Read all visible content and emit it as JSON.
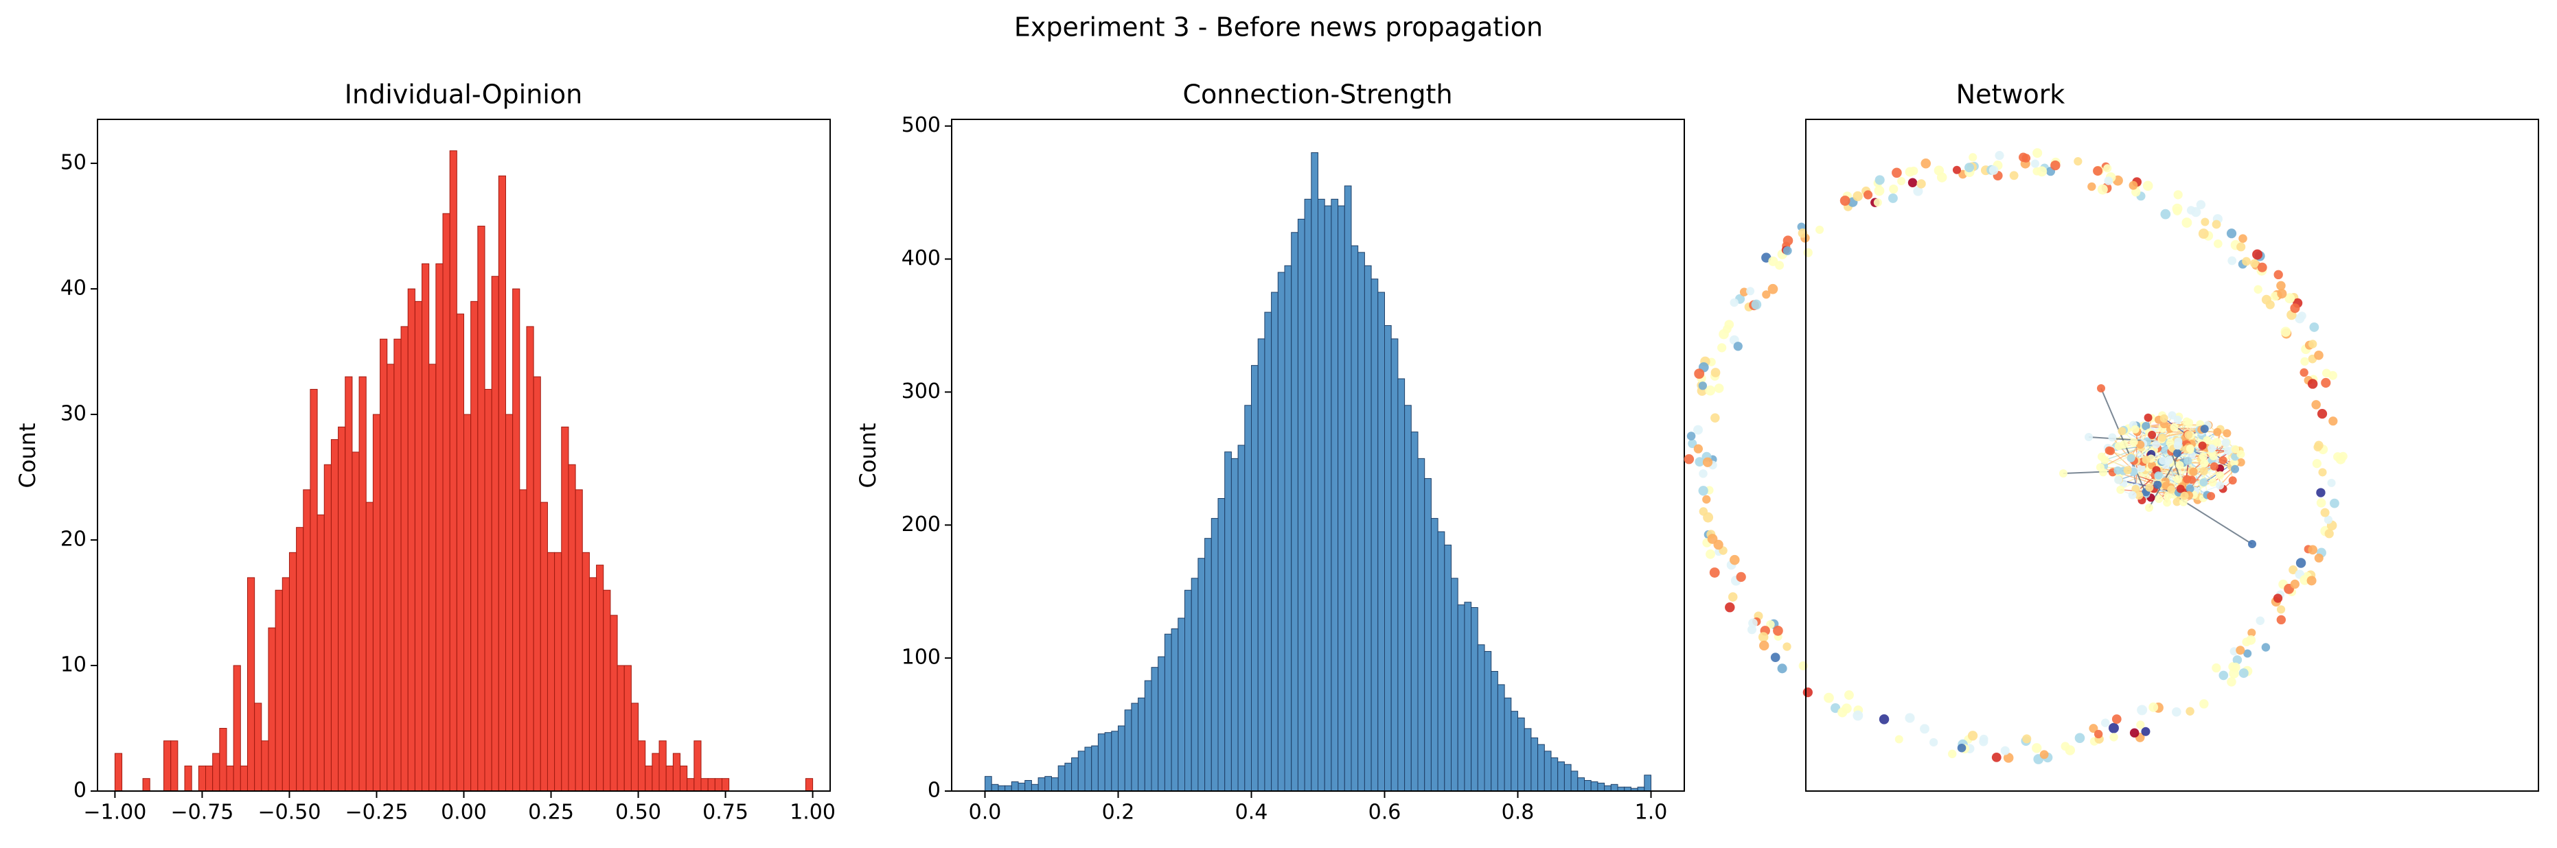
{
  "figure": {
    "suptitle": "Experiment 3 - Before news propagation"
  },
  "colors": {
    "opinion_fill": "#ef3b2c",
    "opinion_edge": "#a01a10",
    "strength_fill": "#4a8cc2",
    "strength_edge": "#1f3f66",
    "axis": "#000000"
  },
  "chart_data": [
    {
      "type": "bar",
      "title": "Individual-Opinion",
      "xlabel": "",
      "ylabel": "Count",
      "xlim": [
        -1.05,
        1.05
      ],
      "ylim": [
        0,
        53.5
      ],
      "xticks": [
        -1.0,
        -0.75,
        -0.5,
        -0.25,
        0.0,
        0.25,
        0.5,
        0.75,
        1.0
      ],
      "xtick_labels": [
        "−1.00",
        "−0.75",
        "−0.50",
        "−0.25",
        "0.00",
        "0.25",
        "0.50",
        "0.75",
        "1.00"
      ],
      "yticks": [
        0,
        10,
        20,
        30,
        40,
        50
      ],
      "ytick_labels": [
        "0",
        "10",
        "20",
        "30",
        "40",
        "50"
      ],
      "bin_start": -1.0,
      "bin_width": 0.02,
      "values": [
        3,
        0,
        0,
        0,
        1,
        0,
        0,
        4,
        4,
        0,
        2,
        0,
        2,
        2,
        3,
        5,
        2,
        10,
        2,
        17,
        7,
        4,
        13,
        16,
        17,
        19,
        21,
        24,
        32,
        22,
        26,
        28,
        29,
        33,
        27,
        33,
        23,
        30,
        36,
        34,
        36,
        37,
        40,
        39,
        42,
        34,
        42,
        46,
        51,
        38,
        30,
        39,
        45,
        32,
        41,
        49,
        30,
        40,
        24,
        37,
        33,
        23,
        19,
        19,
        29,
        26,
        24,
        19,
        17,
        18,
        16,
        14,
        10,
        10,
        7,
        4,
        2,
        3,
        4,
        2,
        3,
        2,
        1,
        4,
        1,
        1,
        1,
        1,
        0,
        0,
        0,
        0,
        0,
        0,
        0,
        0,
        0,
        0,
        0,
        1
      ],
      "grid": false
    },
    {
      "type": "bar",
      "title": "Connection-Strength",
      "xlabel": "",
      "ylabel": "Count",
      "xlim": [
        -0.05,
        1.05
      ],
      "ylim": [
        0,
        505
      ],
      "xticks": [
        0.0,
        0.2,
        0.4,
        0.6,
        0.8,
        1.0
      ],
      "xtick_labels": [
        "0.0",
        "0.2",
        "0.4",
        "0.6",
        "0.8",
        "1.0"
      ],
      "yticks": [
        0,
        100,
        200,
        300,
        400,
        500
      ],
      "ytick_labels": [
        "0",
        "100",
        "200",
        "300",
        "400",
        "500"
      ],
      "bin_start": 0.0,
      "bin_width": 0.01,
      "values": [
        11,
        5,
        4,
        4,
        7,
        6,
        8,
        5,
        10,
        11,
        10,
        19,
        21,
        25,
        30,
        33,
        34,
        43,
        44,
        45,
        49,
        61,
        66,
        70,
        83,
        93,
        101,
        118,
        122,
        130,
        151,
        160,
        175,
        190,
        205,
        220,
        255,
        250,
        260,
        290,
        320,
        340,
        360,
        375,
        390,
        395,
        420,
        430,
        445,
        480,
        445,
        440,
        445,
        440,
        455,
        410,
        405,
        395,
        385,
        375,
        350,
        340,
        310,
        290,
        270,
        250,
        235,
        205,
        195,
        185,
        160,
        140,
        142,
        138,
        110,
        105,
        90,
        80,
        70,
        60,
        55,
        47,
        40,
        35,
        30,
        25,
        22,
        20,
        15,
        10,
        8,
        7,
        6,
        4,
        5,
        3,
        3,
        2,
        3,
        12
      ],
      "grid": false
    },
    {
      "type": "scatter",
      "title": "Network",
      "xlabel": "",
      "ylabel": "",
      "colormap": "RdYlBu",
      "grid": false
    }
  ]
}
